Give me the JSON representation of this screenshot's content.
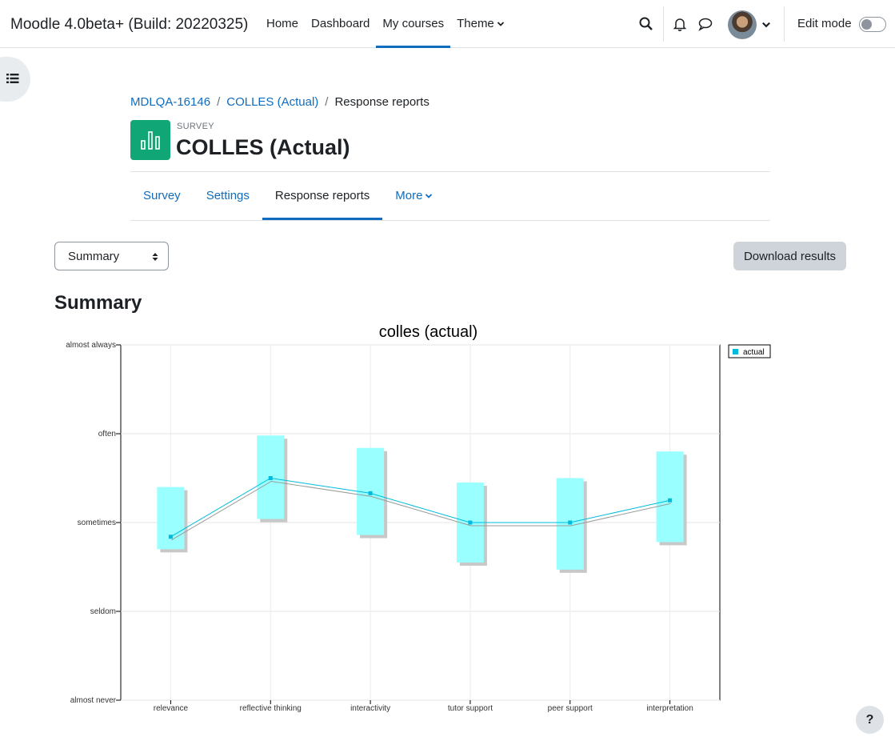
{
  "navbar": {
    "site_name": "Moodle 4.0beta+ (Build: 20220325)",
    "links": [
      "Home",
      "Dashboard",
      "My courses",
      "Theme"
    ],
    "active_link": "My courses",
    "edit_mode_label": "Edit mode",
    "edit_mode_on": false
  },
  "breadcrumb": {
    "items": [
      "MDLQA-16146",
      "COLLES (Actual)",
      "Response reports"
    ],
    "separator": "/"
  },
  "header": {
    "module_type": "SURVEY",
    "title": "COLLES (Actual)",
    "icon": "bar-chart-icon",
    "icon_color": "#11a676"
  },
  "secondary_nav": {
    "tabs": [
      "Survey",
      "Settings",
      "Response reports",
      "More"
    ],
    "active": "Response reports"
  },
  "report_select": {
    "value": "Summary"
  },
  "download_button": "Download results",
  "section_heading": "Summary",
  "help_button": "?",
  "colors": {
    "accent": "#0f6cbf",
    "box": "#99ffff",
    "line": "#00bbdd",
    "shadow": "#c8c8c8"
  },
  "chart_data": {
    "type": "line",
    "title": "colles (actual)",
    "categories": [
      "relevance",
      "reflective thinking",
      "interactivity",
      "tutor support",
      "peer support",
      "interpretation"
    ],
    "y_tick_labels": [
      "almost never",
      "seldom",
      "sometimes",
      "often",
      "almost always"
    ],
    "ylim": [
      1,
      5
    ],
    "series": [
      {
        "name": "actual",
        "values": [
          2.84,
          3.5,
          3.33,
          3.0,
          3.0,
          3.25
        ],
        "range_low": [
          2.7,
          3.04,
          2.86,
          2.55,
          2.47,
          2.78
        ],
        "range_high": [
          3.4,
          3.98,
          3.84,
          3.45,
          3.5,
          3.8
        ]
      }
    ],
    "legend_position": "top-right",
    "grid": true
  }
}
